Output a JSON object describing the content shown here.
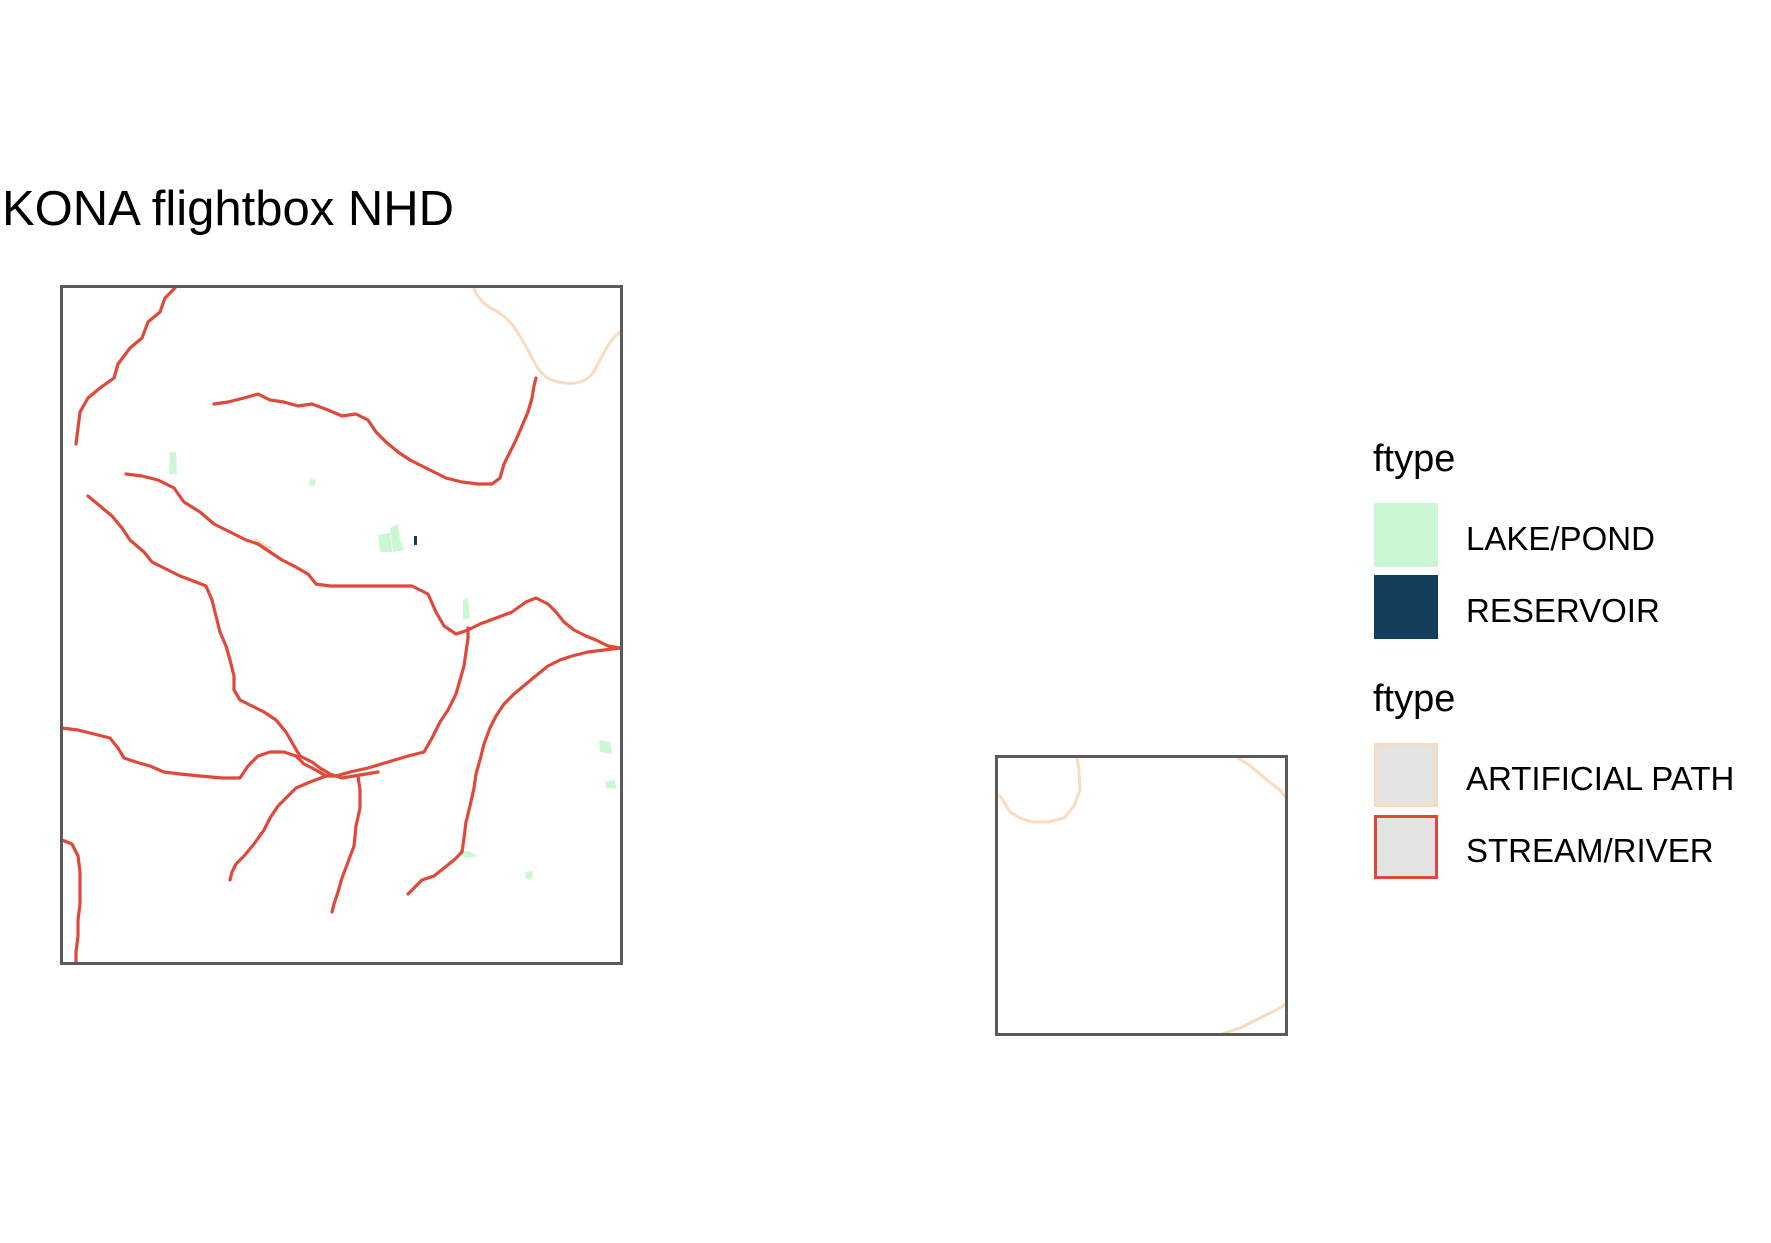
{
  "title": "KONA flightbox NHD",
  "colors": {
    "frame": "#5a5a5a",
    "stream_river": "#e0483a",
    "artificial_path": "#f9dcc0",
    "lake_pond": "#ccf7d3",
    "reservoir": "#123e5b",
    "legend_key_fill": "#e3e3e3"
  },
  "legends": [
    {
      "title": "ftype",
      "items": [
        {
          "label": "LAKE/POND",
          "fill": "#ccf7d3",
          "border": "none"
        },
        {
          "label": "RESERVOIR",
          "fill": "#123e5b",
          "border": "none"
        }
      ]
    },
    {
      "title": "ftype",
      "items": [
        {
          "label": "ARTIFICIAL PATH",
          "fill": "#e3e3e3",
          "border": "#f9dcc0"
        },
        {
          "label": "STREAM/RIVER",
          "fill": "#e3e3e3",
          "border": "#e0483a"
        }
      ]
    }
  ]
}
